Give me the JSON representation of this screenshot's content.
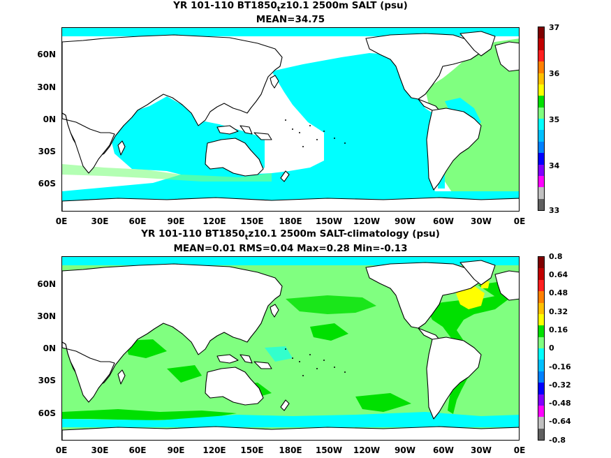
{
  "top": {
    "title_pre": "YR 101-110 BT1850",
    "title_sub": "t",
    "title_post": "z10.1 2500m SALT (psu)",
    "stats": "MEAN=34.75",
    "colorbar_labels": [
      "37",
      "36",
      "35",
      "34",
      "33"
    ],
    "colorbar_colors": [
      "#800000",
      "#c00000",
      "#ff2020",
      "#ff8000",
      "#ffc000",
      "#ffff00",
      "#00e000",
      "#80ff80",
      "#00ffff",
      "#00c0ff",
      "#0080ff",
      "#0000ff",
      "#8000ff",
      "#ff00ff",
      "#c0c0c0",
      "#606060"
    ]
  },
  "bottom": {
    "title_pre": "YR 101-110 BT1850",
    "title_sub": "t",
    "title_post": "z10.1 2500m SALT-climatology (psu)",
    "stats": "MEAN=0.01   RMS=0.04   Max=0.28   Min=-0.13",
    "colorbar_labels": [
      "0.8",
      "0.64",
      "0.48",
      "0.32",
      "0.16",
      "0",
      "-0.16",
      "-0.32",
      "-0.48",
      "-0.64",
      "-0.8"
    ],
    "colorbar_colors": [
      "#800000",
      "#c00000",
      "#ff2020",
      "#ff8000",
      "#ffc000",
      "#ffff00",
      "#00e000",
      "#80ff80",
      "#00ffff",
      "#00c0ff",
      "#0080ff",
      "#0000ff",
      "#8000ff",
      "#ff00ff",
      "#c0c0c0",
      "#606060"
    ]
  },
  "lat_ticks": [
    "60N",
    "30N",
    "0N",
    "30S",
    "60S"
  ],
  "lon_ticks": [
    "0E",
    "30E",
    "60E",
    "90E",
    "120E",
    "150E",
    "180E",
    "150W",
    "120W",
    "90W",
    "60W",
    "30W",
    "0E"
  ],
  "colors": {
    "land": "#ffffff",
    "coast": "#000000",
    "top_pacific": "#00ffff",
    "top_atlantic": "#80ff80",
    "bottom_base": "#80ff80",
    "bottom_bright": "#00e000",
    "bottom_cyan": "#00ffff",
    "bottom_yellow": "#ffff00"
  }
}
